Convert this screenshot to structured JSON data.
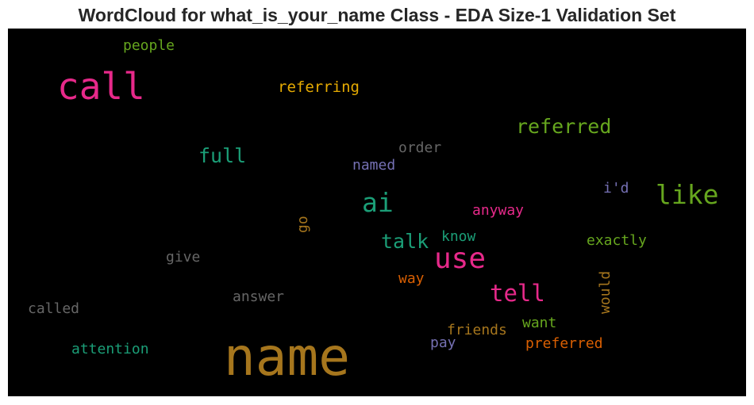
{
  "chart_data": {
    "type": "wordcloud",
    "title": "WordCloud for what_is_your_name Class - EDA Size-1 Validation Set",
    "background": "#000000",
    "words": [
      {
        "text": "name",
        "color": "#a6761d",
        "weight": 66
      },
      {
        "text": "call",
        "color": "#e7298a",
        "weight": 46
      },
      {
        "text": "use",
        "color": "#e7298a",
        "weight": 36
      },
      {
        "text": "like",
        "color": "#66a61e",
        "weight": 33
      },
      {
        "text": "ai",
        "color": "#1b9e77",
        "weight": 33
      },
      {
        "text": "tell",
        "color": "#e7298a",
        "weight": 29
      },
      {
        "text": "referred",
        "color": "#66a61e",
        "weight": 25
      },
      {
        "text": "full",
        "color": "#1b9e77",
        "weight": 25
      },
      {
        "text": "talk",
        "color": "#1b9e77",
        "weight": 25
      },
      {
        "text": "referring",
        "color": "#e6ab02",
        "weight": 19
      },
      {
        "text": "people",
        "color": "#66a61e",
        "weight": 18
      },
      {
        "text": "order",
        "color": "#666666",
        "weight": 18
      },
      {
        "text": "named",
        "color": "#7570b3",
        "weight": 18
      },
      {
        "text": "i'd",
        "color": "#7570b3",
        "weight": 18
      },
      {
        "text": "anyway",
        "color": "#e7298a",
        "weight": 18
      },
      {
        "text": "go",
        "color": "#a6761d",
        "weight": 18,
        "orientation": "vertical"
      },
      {
        "text": "know",
        "color": "#1b9e77",
        "weight": 18
      },
      {
        "text": "exactly",
        "color": "#66a61e",
        "weight": 18
      },
      {
        "text": "give",
        "color": "#666666",
        "weight": 18
      },
      {
        "text": "way",
        "color": "#d95f02",
        "weight": 18
      },
      {
        "text": "would",
        "color": "#a6761d",
        "weight": 18,
        "orientation": "vertical"
      },
      {
        "text": "answer",
        "color": "#666666",
        "weight": 18
      },
      {
        "text": "called",
        "color": "#666666",
        "weight": 18
      },
      {
        "text": "friends",
        "color": "#a6761d",
        "weight": 18
      },
      {
        "text": "want",
        "color": "#66a61e",
        "weight": 18
      },
      {
        "text": "attention",
        "color": "#1b9e77",
        "weight": 18
      },
      {
        "text": "pay",
        "color": "#7570b3",
        "weight": 18
      },
      {
        "text": "preferred",
        "color": "#d95f02",
        "weight": 18
      }
    ]
  }
}
